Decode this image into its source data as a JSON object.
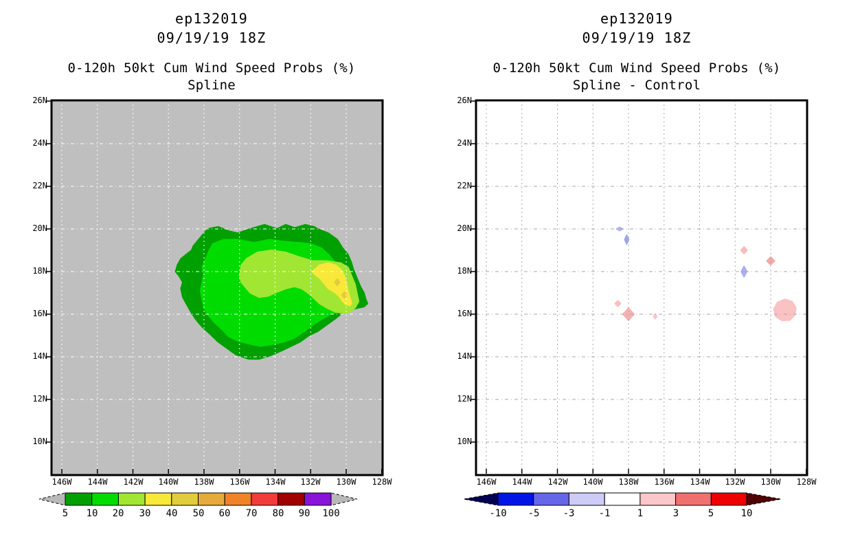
{
  "panels": [
    {
      "title_line1": "ep132019",
      "title_line2": "09/19/19 18Z",
      "title_line3": "0-120h 50kt Cum Wind Speed Probs (%)",
      "title_line4": "Spline"
    },
    {
      "title_line1": "ep132019",
      "title_line2": "09/19/19 18Z",
      "title_line3": "0-120h 50kt Cum Wind Speed Probs (%)",
      "title_line4": "Spline - Control"
    }
  ],
  "chart_data": [
    {
      "type": "filled_contour_map",
      "title": "ep132019 09/19/19 18Z 0-120h 50kt Cum Wind Speed Probs (%) Spline",
      "x_tick_labels": [
        "146W",
        "144W",
        "142W",
        "140W",
        "138W",
        "136W",
        "134W",
        "132W",
        "130W",
        "128W"
      ],
      "y_tick_labels": [
        "26N",
        "24N",
        "22N",
        "20N",
        "18N",
        "16N",
        "14N",
        "12N",
        "10N"
      ],
      "grid_lons": [
        146,
        144,
        142,
        140,
        138,
        136,
        134,
        132,
        130
      ],
      "grid_lats": [
        24,
        22,
        20,
        18,
        16,
        14,
        12,
        10
      ],
      "background_color": "#bfbfbf",
      "grid_color": "#ffffff",
      "contour_levels_pct": [
        5,
        10,
        20,
        30,
        40,
        50,
        60,
        70,
        80,
        90,
        100
      ],
      "colorbar": {
        "labels": [
          "5",
          "10",
          "20",
          "30",
          "40",
          "50",
          "60",
          "70",
          "80",
          "90",
          "100"
        ],
        "colors": [
          "#00a000",
          "#00dc00",
          "#a0e632",
          "#f8e838",
          "#e0cc3c",
          "#e6aa3c",
          "#f08228",
          "#f23c3c",
          "#a00000",
          "#8814d8"
        ],
        "under_color": "#b8b8b8",
        "over_color": "#b8b8b8"
      },
      "contours": [
        {
          "level_pct": 5,
          "color": "#00a000",
          "points_lon_lat": [
            [
              137.8,
              20.0
            ],
            [
              137.2,
              20.1
            ],
            [
              136.6,
              19.9
            ],
            [
              136.1,
              19.8
            ],
            [
              135.6,
              19.95
            ],
            [
              135.0,
              20.1
            ],
            [
              134.6,
              20.2
            ],
            [
              133.9,
              20.0
            ],
            [
              133.4,
              20.2
            ],
            [
              132.9,
              20.05
            ],
            [
              132.3,
              20.2
            ],
            [
              131.8,
              20.1
            ],
            [
              131.6,
              20.0
            ],
            [
              131.0,
              19.8
            ],
            [
              130.5,
              19.5
            ],
            [
              130.2,
              19.1
            ],
            [
              129.9,
              18.8
            ],
            [
              129.7,
              18.4
            ],
            [
              129.6,
              18.1
            ],
            [
              129.4,
              17.7
            ],
            [
              129.2,
              17.3
            ],
            [
              129.0,
              17.0
            ],
            [
              128.9,
              16.7
            ],
            [
              128.8,
              16.5
            ],
            [
              129.0,
              16.35
            ],
            [
              129.3,
              16.3
            ],
            [
              129.8,
              16.2
            ],
            [
              130.1,
              16.1
            ],
            [
              130.3,
              16.0
            ],
            [
              130.6,
              15.8
            ],
            [
              131.1,
              15.5
            ],
            [
              131.6,
              15.2
            ],
            [
              132.1,
              15.0
            ],
            [
              132.6,
              14.7
            ],
            [
              133.1,
              14.5
            ],
            [
              133.6,
              14.3
            ],
            [
              134.3,
              14.05
            ],
            [
              134.9,
              13.9
            ],
            [
              135.5,
              13.9
            ],
            [
              136.2,
              14.1
            ],
            [
              136.7,
              14.4
            ],
            [
              137.2,
              14.7
            ],
            [
              137.7,
              15.1
            ],
            [
              138.1,
              15.4
            ],
            [
              138.5,
              15.8
            ],
            [
              138.8,
              16.2
            ],
            [
              139.0,
              16.5
            ],
            [
              139.2,
              16.8
            ],
            [
              139.3,
              17.2
            ],
            [
              139.2,
              17.5
            ],
            [
              139.4,
              17.8
            ],
            [
              139.6,
              18.0
            ],
            [
              139.5,
              18.3
            ],
            [
              139.3,
              18.6
            ],
            [
              139.0,
              18.8
            ],
            [
              138.7,
              19.0
            ],
            [
              138.6,
              19.2
            ],
            [
              138.4,
              19.4
            ],
            [
              138.1,
              19.7
            ]
          ]
        },
        {
          "level_pct": 10,
          "color": "#00dc00",
          "points_lon_lat": [
            [
              137.5,
              19.3
            ],
            [
              136.9,
              19.5
            ],
            [
              136.1,
              19.5
            ],
            [
              135.2,
              19.35
            ],
            [
              134.3,
              19.5
            ],
            [
              133.4,
              19.4
            ],
            [
              132.6,
              19.35
            ],
            [
              132.0,
              19.3
            ],
            [
              131.4,
              19.1
            ],
            [
              131.0,
              18.8
            ],
            [
              130.7,
              18.5
            ],
            [
              130.5,
              18.1
            ],
            [
              130.3,
              17.7
            ],
            [
              130.1,
              17.4
            ],
            [
              129.9,
              17.0
            ],
            [
              129.7,
              16.7
            ],
            [
              129.55,
              16.45
            ],
            [
              129.8,
              16.3
            ],
            [
              130.1,
              16.2
            ],
            [
              130.5,
              16.1
            ],
            [
              130.9,
              16.0
            ],
            [
              131.3,
              15.8
            ],
            [
              131.7,
              15.6
            ],
            [
              132.2,
              15.3
            ],
            [
              132.9,
              14.9
            ],
            [
              133.5,
              14.7
            ],
            [
              134.1,
              14.6
            ],
            [
              134.8,
              14.5
            ],
            [
              135.4,
              14.6
            ],
            [
              136.1,
              14.75
            ],
            [
              136.6,
              14.95
            ],
            [
              137.0,
              15.3
            ],
            [
              137.4,
              15.6
            ],
            [
              137.8,
              16.0
            ],
            [
              138.0,
              16.3
            ],
            [
              138.1,
              16.7
            ],
            [
              138.2,
              17.1
            ],
            [
              138.1,
              17.5
            ],
            [
              138.0,
              17.9
            ],
            [
              138.1,
              18.2
            ],
            [
              137.9,
              18.6
            ],
            [
              137.7,
              19.0
            ]
          ]
        },
        {
          "level_pct": 20,
          "color": "#a0e632",
          "points_lon_lat": [
            [
              136.0,
              17.8
            ],
            [
              135.9,
              18.3
            ],
            [
              135.6,
              18.6
            ],
            [
              135.0,
              18.9
            ],
            [
              134.2,
              19.0
            ],
            [
              133.4,
              18.9
            ],
            [
              132.7,
              18.7
            ],
            [
              131.9,
              18.5
            ],
            [
              131.1,
              18.5
            ],
            [
              130.3,
              18.4
            ],
            [
              129.9,
              18.2
            ],
            [
              129.7,
              17.8
            ],
            [
              129.5,
              17.4
            ],
            [
              129.4,
              17.0
            ],
            [
              129.3,
              16.6
            ],
            [
              129.5,
              16.3
            ],
            [
              129.8,
              16.1
            ],
            [
              130.1,
              16.05
            ],
            [
              130.6,
              16.1
            ],
            [
              131.1,
              16.3
            ],
            [
              131.5,
              16.5
            ],
            [
              132.0,
              16.9
            ],
            [
              132.5,
              17.2
            ],
            [
              132.9,
              17.3
            ],
            [
              133.4,
              17.2
            ],
            [
              134.0,
              17.0
            ],
            [
              134.4,
              16.85
            ],
            [
              134.9,
              16.8
            ],
            [
              135.4,
              17.0
            ],
            [
              135.7,
              17.3
            ],
            [
              135.9,
              17.5
            ]
          ]
        },
        {
          "level_pct": 30,
          "color": "#f8e838",
          "points_lon_lat": [
            [
              131.9,
              18.0
            ],
            [
              131.5,
              18.3
            ],
            [
              131.0,
              18.4
            ],
            [
              130.6,
              18.3
            ],
            [
              130.3,
              18.1
            ],
            [
              130.1,
              17.8
            ],
            [
              130.0,
              17.5
            ],
            [
              129.9,
              17.1
            ],
            [
              129.8,
              16.8
            ],
            [
              129.7,
              16.5
            ],
            [
              129.8,
              16.4
            ],
            [
              130.0,
              16.45
            ],
            [
              130.2,
              16.6
            ],
            [
              130.35,
              16.8
            ],
            [
              130.6,
              17.0
            ],
            [
              131.0,
              17.2
            ],
            [
              131.3,
              17.5
            ],
            [
              131.5,
              17.7
            ],
            [
              131.8,
              17.9
            ]
          ]
        }
      ],
      "max_spots": [
        {
          "level_pct": 40,
          "lon_w": 130.5,
          "lat_n": 17.5,
          "w": 7,
          "h": 9,
          "color": "#e0cc3c"
        },
        {
          "level_pct": 40,
          "lon_w": 130.1,
          "lat_n": 16.9,
          "w": 7,
          "h": 9,
          "color": "#e0cc3c"
        }
      ]
    },
    {
      "type": "filled_contour_difference_map",
      "title": "ep132019 09/19/19 18Z 0-120h 50kt Cum Wind Speed Probs (%) Spline - Control",
      "x_tick_labels": [
        "146W",
        "144W",
        "142W",
        "140W",
        "138W",
        "136W",
        "134W",
        "132W",
        "130W",
        "128W"
      ],
      "y_tick_labels": [
        "26N",
        "24N",
        "22N",
        "20N",
        "18N",
        "16N",
        "14N",
        "12N",
        "10N"
      ],
      "grid_lons": [
        146,
        144,
        142,
        140,
        138,
        136,
        134,
        132,
        130
      ],
      "grid_lats": [
        24,
        22,
        20,
        18,
        16,
        14,
        12,
        10
      ],
      "background_color": "#ffffff",
      "grid_color": "#a6a6a6",
      "contour_levels_pct": [
        -10,
        -5,
        -3,
        -1,
        1,
        3,
        5,
        10
      ],
      "colorbar": {
        "labels": [
          "-10",
          "-5",
          "-3",
          "-1",
          "1",
          "3",
          "5",
          "10"
        ],
        "colors": [
          "#0014e6",
          "#6666e8",
          "#ccccf6",
          "#ffffff",
          "#fac8c8",
          "#f07070",
          "#ee0000"
        ],
        "under_color": "#000050",
        "over_color": "#500000"
      },
      "anomalies": [
        {
          "lon_w": 138.5,
          "lat_n": 20.0,
          "shape": "diamond",
          "w": 9,
          "h": 5,
          "sign": "negative",
          "color": "#b4b4f2"
        },
        {
          "lon_w": 138.1,
          "lat_n": 19.5,
          "shape": "diamond",
          "w": 6,
          "h": 13,
          "sign": "negative",
          "color": "#a4a4ee"
        },
        {
          "lon_w": 131.5,
          "lat_n": 19.0,
          "shape": "diamond",
          "w": 9,
          "h": 10,
          "sign": "positive",
          "color": "#f8bcbc"
        },
        {
          "lon_w": 130.0,
          "lat_n": 18.5,
          "shape": "diamond",
          "w": 11,
          "h": 11,
          "sign": "positive",
          "color": "#f4a8a8"
        },
        {
          "lon_w": 131.5,
          "lat_n": 18.0,
          "shape": "diamond",
          "w": 8,
          "h": 15,
          "sign": "negative",
          "color": "#acacf0"
        },
        {
          "lon_w": 138.6,
          "lat_n": 16.5,
          "shape": "diamond",
          "w": 8,
          "h": 8,
          "sign": "positive",
          "color": "#f8c0c0"
        },
        {
          "lon_w": 138.0,
          "lat_n": 16.0,
          "shape": "diamond",
          "w": 16,
          "h": 18,
          "sign": "positive",
          "color": "#f6b2b2"
        },
        {
          "lon_w": 136.5,
          "lat_n": 15.9,
          "shape": "diamond",
          "w": 5,
          "h": 7,
          "sign": "positive",
          "color": "#f8c6c6"
        },
        {
          "lon_w": 129.2,
          "lat_n": 16.2,
          "shape": "blob",
          "w": 31,
          "h": 30,
          "sign": "positive",
          "color": "#fac2c2"
        }
      ]
    }
  ]
}
